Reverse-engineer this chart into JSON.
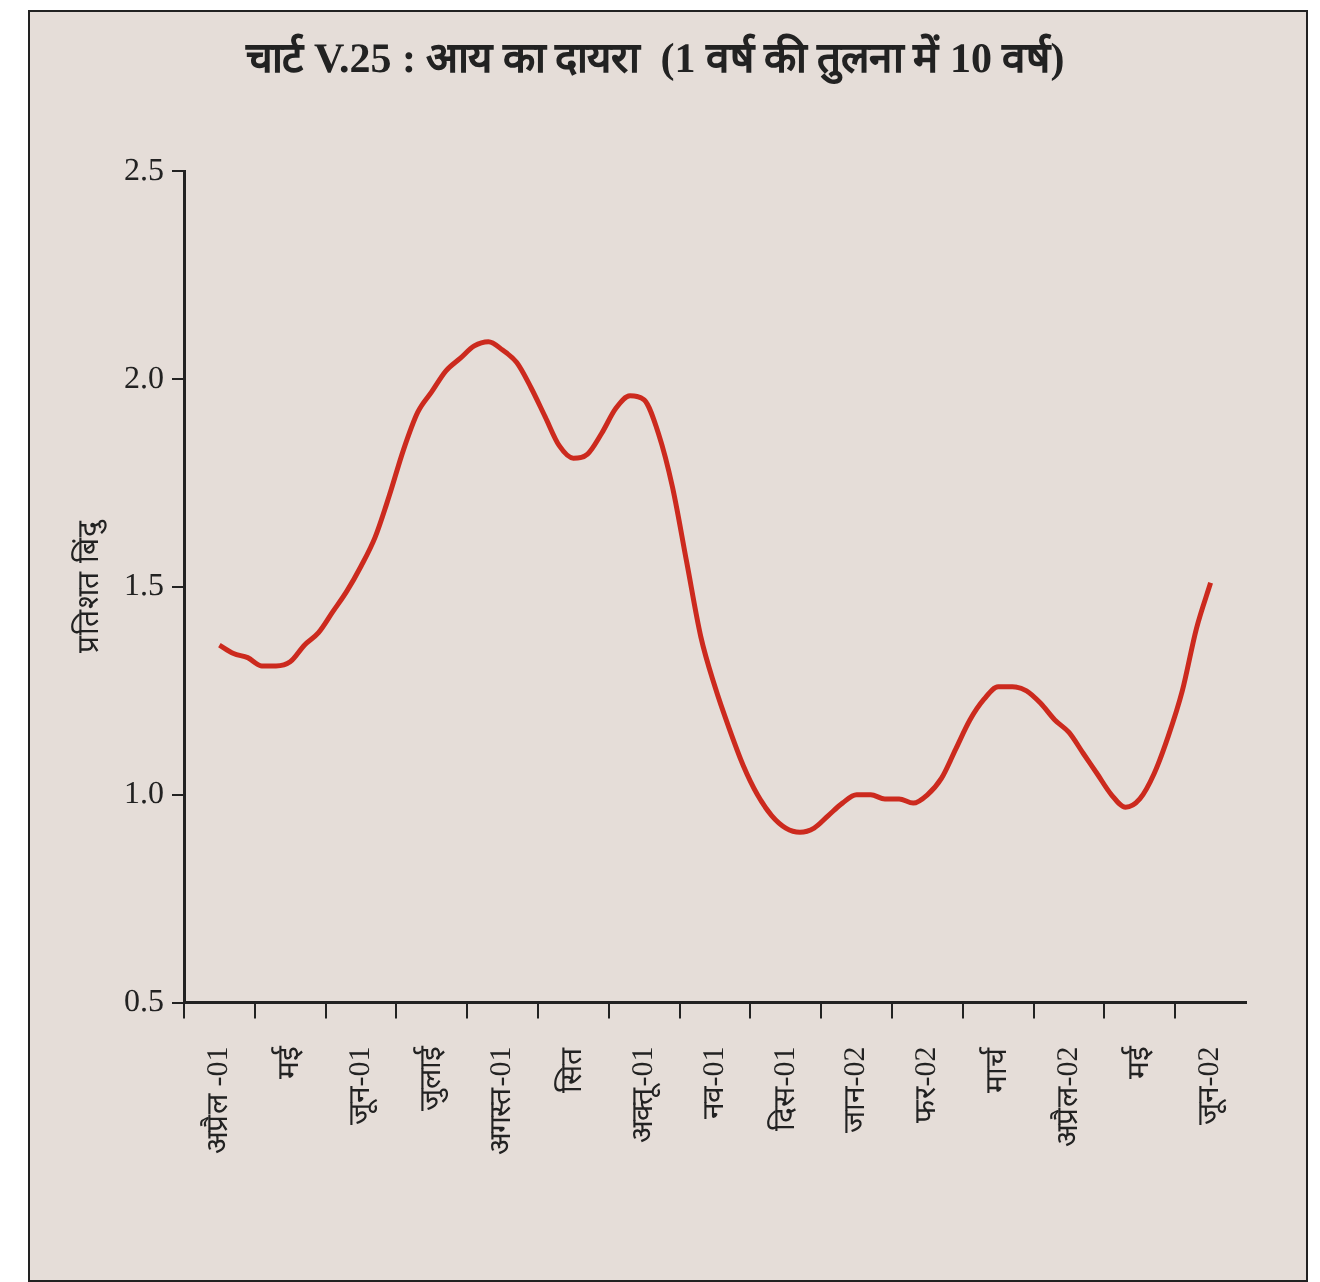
{
  "chart_data": {
    "type": "line",
    "title": "चार्ट V.25 : आय का दायरा  (1 वर्ष की तुलना में 10 वर्ष)",
    "ylabel": "प्रतिशत बिंदु",
    "color": "#cc2a1e",
    "categories": [
      null,
      null,
      "अप्रैल -01",
      null,
      null,
      null,
      null,
      "मई",
      null,
      null,
      null,
      null,
      "जून-01",
      null,
      null,
      null,
      null,
      "जुलाई",
      null,
      null,
      null,
      null,
      "अगस्त-01",
      null,
      null,
      null,
      null,
      "सित",
      null,
      null,
      null,
      null,
      "अक्तू-01",
      null,
      null,
      null,
      null,
      "नव-01",
      null,
      null,
      null,
      null,
      "दिस-01",
      null,
      null,
      null,
      null,
      "जान-02",
      null,
      null,
      null,
      null,
      "फर-02",
      null,
      null,
      null,
      null,
      "मार्च",
      null,
      null,
      null,
      null,
      "अप्रैल-02",
      null,
      null,
      null,
      null,
      "मई",
      null,
      null,
      null,
      null,
      "जून-02",
      null,
      null
    ],
    "values": [
      null,
      null,
      1.36,
      1.34,
      1.33,
      1.31,
      1.31,
      1.32,
      1.36,
      1.39,
      1.44,
      1.49,
      1.55,
      1.62,
      1.72,
      1.83,
      1.92,
      1.97,
      2.02,
      2.05,
      2.08,
      2.09,
      2.07,
      2.04,
      1.98,
      1.91,
      1.84,
      1.81,
      1.82,
      1.87,
      1.93,
      1.96,
      1.95,
      1.87,
      1.74,
      1.56,
      1.38,
      1.26,
      1.16,
      1.07,
      1.0,
      0.95,
      0.92,
      0.91,
      0.92,
      0.95,
      0.98,
      1.0,
      1.0,
      0.99,
      0.99,
      0.98,
      1.0,
      1.04,
      1.11,
      1.18,
      1.23,
      1.26,
      1.26,
      1.25,
      1.22,
      1.18,
      1.15,
      1.1,
      1.05,
      1.0,
      0.97,
      0.99,
      1.05,
      1.14,
      1.25,
      1.4,
      1.51,
      null,
      null
    ],
    "ylim": [
      0.5,
      2.5
    ],
    "yticks": [
      {
        "value": 0.5,
        "label": "0.5"
      },
      {
        "value": 1,
        "label": "1.0"
      },
      {
        "value": 1.5,
        "label": "1.5"
      },
      {
        "value": 2,
        "label": "2.0"
      },
      {
        "value": 2.5,
        "label": "2.5"
      }
    ],
    "grid": false,
    "legend": false,
    "marker": "none",
    "line_style": "solid"
  }
}
